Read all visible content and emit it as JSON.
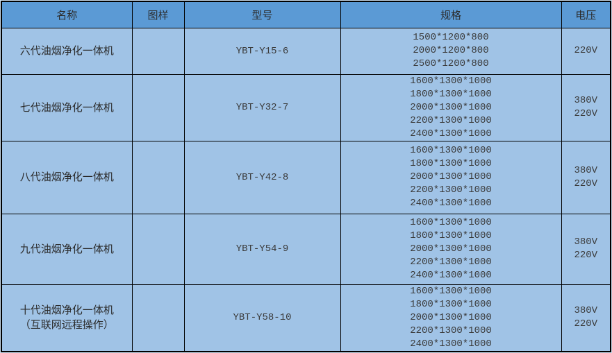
{
  "colors": {
    "header_bg": "#5b9ad5",
    "row_bg": "#a0c3e6",
    "page_bg": "#cfe1f1",
    "border": "#000000",
    "text": "#333333"
  },
  "table": {
    "headers": [
      "名称",
      "图样",
      "型号",
      "规格",
      "电压"
    ],
    "rows": [
      {
        "name_lines": [
          "六代油烟净化一体机"
        ],
        "model": "YBT-Y15-6",
        "specs": [
          "1500*1200*800",
          "2000*1200*800",
          "2500*1200*800"
        ],
        "voltages": [
          "220V"
        ]
      },
      {
        "name_lines": [
          "七代油烟净化一体机"
        ],
        "model": "YBT-Y32-7",
        "specs": [
          "1600*1300*1000",
          "1800*1300*1000",
          "2000*1300*1000",
          "2200*1300*1000",
          "2400*1300*1000"
        ],
        "voltages": [
          "380V",
          "220V"
        ]
      },
      {
        "name_lines": [
          "八代油烟净化一体机"
        ],
        "model": "YBT-Y42-8",
        "specs": [
          "1600*1300*1000",
          "1800*1300*1000",
          "2000*1300*1000",
          "2200*1300*1000",
          "2400*1300*1000"
        ],
        "voltages": [
          "380V",
          "220V"
        ]
      },
      {
        "name_lines": [
          "九代油烟净化一体机"
        ],
        "model": "YBT-Y54-9",
        "specs": [
          "1600*1300*1000",
          "1800*1300*1000",
          "2000*1300*1000",
          "2200*1300*1000",
          "2400*1300*1000"
        ],
        "voltages": [
          "380V",
          "220V"
        ]
      },
      {
        "name_lines": [
          "十代油烟净化一体机",
          "（互联网远程操作）"
        ],
        "model": "YBT-Y58-10",
        "specs": [
          "1600*1300*1000",
          "1800*1300*1000",
          "2000*1300*1000",
          "2200*1300*1000",
          "2400*1300*1000"
        ],
        "voltages": [
          "380V",
          "220V"
        ]
      }
    ]
  }
}
